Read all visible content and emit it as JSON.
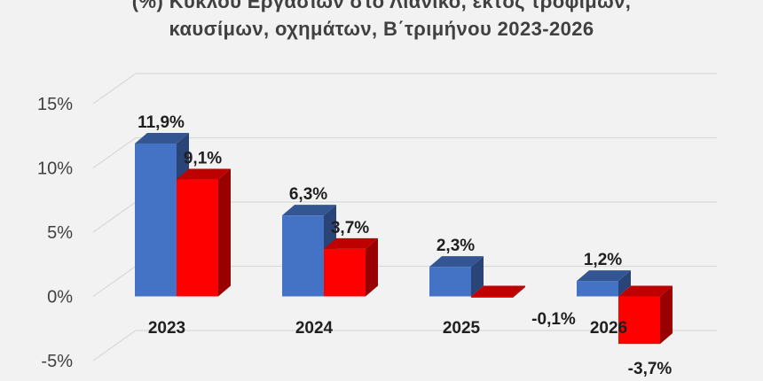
{
  "title": {
    "line1_before": "(%) Κύκλου Εργασιών ",
    "line1_emph": "στο Λιανικό",
    "line1_after": ", εκτός τροφίμων,",
    "line2": "καυσίμων, οχημάτων, Β΄τριμήνου 2023-2026"
  },
  "colors": {
    "series_1": "#4472c4",
    "series_2": "#ff0000"
  },
  "chart_data": {
    "type": "bar",
    "categories": [
      "2023",
      "2024",
      "2025",
      "2026"
    ],
    "series": [
      {
        "values": [
          11.9,
          6.3,
          2.3,
          1.2
        ],
        "labels": [
          "11,9%",
          "6,3%",
          "2,3%",
          "1,2%"
        ]
      },
      {
        "values": [
          9.1,
          3.7,
          -0.1,
          -3.7
        ],
        "labels": [
          "9,1%",
          "3,7%",
          "-0,1%",
          "-3,7%"
        ]
      }
    ],
    "ylim": [
      -5,
      15
    ],
    "y_ticks": [
      15,
      10,
      5,
      0,
      -5
    ],
    "y_tick_labels": [
      "15%",
      "10%",
      "5%",
      "0%",
      "-5%"
    ],
    "grid": true,
    "legend": "none",
    "style": "3d-clustered-column"
  }
}
